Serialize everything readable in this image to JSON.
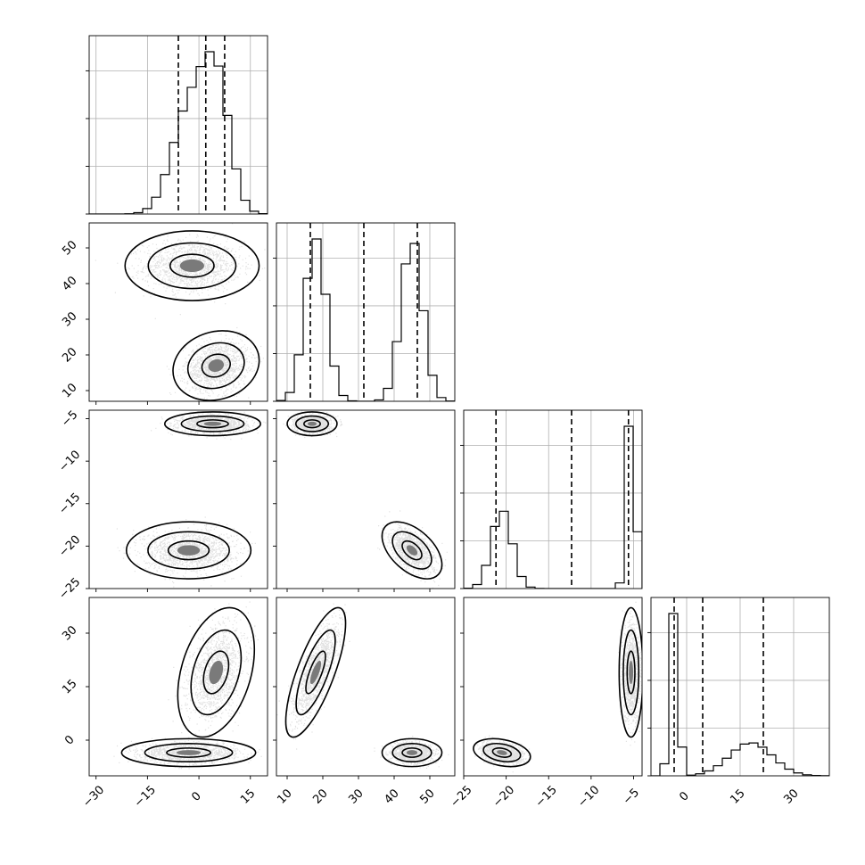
{
  "chart_data": {
    "type": "corner",
    "title": "",
    "parameters": [
      {
        "range": [
          -32,
          20
        ],
        "ticks": [
          -30,
          -15,
          0,
          15
        ],
        "hist": {
          "type": "bimodal-gaussian-1d",
          "components": [
            {
              "mean": -3,
              "sd": 5,
              "weight": 0.5
            },
            {
              "mean": 5,
              "sd": 4,
              "weight": 0.5
            }
          ]
        },
        "quantiles": [
          -6,
          2,
          7.5
        ]
      },
      {
        "range": [
          7,
          57
        ],
        "ticks": [
          10,
          20,
          30,
          40,
          50
        ],
        "hist": {
          "type": "bimodal-gaussian-1d",
          "components": [
            {
              "mean": 18,
              "sd": 3,
              "weight": 0.5
            },
            {
              "mean": 45,
              "sd": 3,
              "weight": 0.5
            }
          ]
        },
        "quantiles": [
          16.5,
          31.5,
          46.5
        ]
      },
      {
        "range": [
          -25,
          -4
        ],
        "ticks": [
          -25,
          -20,
          -15,
          -10,
          -5
        ],
        "hist": {
          "type": "bimodal-gaussian-1d",
          "components": [
            {
              "mean": -20.5,
              "sd": 1.2,
              "weight": 0.5
            },
            {
              "mean": -5.3,
              "sd": 0.5,
              "weight": 0.5
            }
          ]
        },
        "quantiles": [
          -21.2,
          -12.3,
          -5.6
        ]
      },
      {
        "range": [
          -10,
          40
        ],
        "ticks": [
          0,
          15,
          30
        ],
        "hist": {
          "type": "bimodal-gaussian-1d",
          "components": [
            {
              "mean": -3.5,
              "sd": 1.2,
              "weight": 0.5
            },
            {
              "mean": 18,
              "sd": 6,
              "weight": 0.5
            }
          ]
        },
        "quantiles": [
          -3.5,
          4.5,
          21.5
        ]
      }
    ],
    "pairs": [
      {
        "row": 1,
        "col": 0,
        "components": [
          {
            "mean": [
              -2,
              45
            ],
            "sd": [
              7,
              3.5
            ],
            "rho": 0
          },
          {
            "mean": [
              5,
              17
            ],
            "sd": [
              4.5,
              3.5
            ],
            "rho": 0.15
          }
        ]
      },
      {
        "row": 2,
        "col": 0,
        "components": [
          {
            "mean": [
              4,
              -5.6
            ],
            "sd": [
              5,
              0.5
            ],
            "rho": 0
          },
          {
            "mean": [
              -3,
              -20.5
            ],
            "sd": [
              6.5,
              1.2
            ],
            "rho": 0
          }
        ]
      },
      {
        "row": 2,
        "col": 1,
        "components": [
          {
            "mean": [
              17,
              -5.6
            ],
            "sd": [
              2.5,
              0.5
            ],
            "rho": 0
          },
          {
            "mean": [
              45,
              -20.5
            ],
            "sd": [
              3,
              1.2
            ],
            "rho": -0.5
          }
        ]
      },
      {
        "row": 3,
        "col": 0,
        "components": [
          {
            "mean": [
              -3,
              -3.5
            ],
            "sd": [
              7,
              1.4
            ],
            "rho": 0
          },
          {
            "mean": [
              5,
              19
            ],
            "sd": [
              4,
              6.5
            ],
            "rho": 0.35
          }
        ]
      },
      {
        "row": 3,
        "col": 1,
        "components": [
          {
            "mean": [
              18,
              19
            ],
            "sd": [
              3,
              6.5
            ],
            "rho": 0.75
          },
          {
            "mean": [
              45,
              -3.5
            ],
            "sd": [
              3,
              1.4
            ],
            "rho": 0
          }
        ]
      },
      {
        "row": 3,
        "col": 2,
        "components": [
          {
            "mean": [
              -20.5,
              -3.5
            ],
            "sd": [
              1.2,
              1.4
            ],
            "rho": -0.3
          },
          {
            "mean": [
              -5.3,
              19
            ],
            "sd": [
              0.5,
              6.5
            ],
            "rho": 0
          }
        ]
      }
    ],
    "contour_levels": [
      0.39,
      0.86,
      0.99
    ],
    "grid": true
  }
}
